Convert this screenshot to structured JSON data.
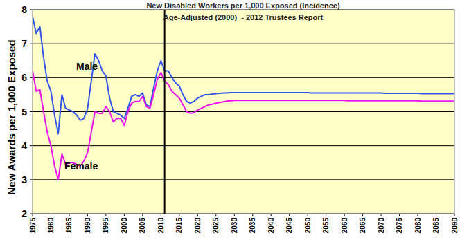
{
  "chart_data": {
    "type": "line",
    "title": "New Disabled Workers per 1,000 Exposed (Incidence)",
    "subtitle": "Age-Adjusted (2000)  - 2012 Trustees Report",
    "y_label": "New Awards per 1,000 Exposed",
    "x": [
      1975,
      1976,
      1977,
      1978,
      1979,
      1980,
      1981,
      1982,
      1983,
      1984,
      1985,
      1986,
      1987,
      1988,
      1989,
      1990,
      1991,
      1992,
      1993,
      1994,
      1995,
      1996,
      1997,
      1998,
      1999,
      2000,
      2001,
      2002,
      2003,
      2004,
      2005,
      2006,
      2007,
      2008,
      2009,
      2010,
      2011,
      2012,
      2013,
      2014,
      2015,
      2016,
      2017,
      2018,
      2019,
      2020,
      2021,
      2022,
      2023,
      2024,
      2025,
      2026,
      2027,
      2028,
      2029,
      2030,
      2031,
      2032,
      2033,
      2034,
      2035,
      2036,
      2037,
      2038,
      2039,
      2040,
      2041,
      2042,
      2043,
      2044,
      2045,
      2046,
      2047,
      2048,
      2049,
      2050,
      2051,
      2052,
      2053,
      2054,
      2055,
      2056,
      2057,
      2058,
      2059,
      2060,
      2061,
      2062,
      2063,
      2064,
      2065,
      2066,
      2067,
      2068,
      2069,
      2070,
      2071,
      2072,
      2073,
      2074,
      2075,
      2076,
      2077,
      2078,
      2079,
      2080,
      2081,
      2082,
      2083,
      2084,
      2085,
      2086,
      2087,
      2088,
      2089,
      2090
    ],
    "series": [
      {
        "name": "Male",
        "color": "#3355ee",
        "values": [
          7.8,
          7.3,
          7.5,
          6.6,
          5.9,
          5.6,
          4.9,
          4.35,
          5.5,
          5.1,
          5.05,
          5.0,
          4.9,
          4.75,
          4.8,
          5.1,
          5.9,
          6.7,
          6.5,
          6.2,
          6.05,
          5.4,
          5.0,
          4.95,
          4.9,
          4.8,
          5.1,
          5.45,
          5.5,
          5.45,
          5.55,
          5.2,
          5.15,
          5.7,
          6.2,
          6.5,
          6.2,
          6.2,
          6.0,
          5.85,
          5.75,
          5.5,
          5.3,
          5.25,
          5.3,
          5.4,
          5.45,
          5.5,
          5.5,
          5.52,
          5.53,
          5.54,
          5.55,
          5.55,
          5.56,
          5.56,
          5.56,
          5.56,
          5.56,
          5.56,
          5.56,
          5.56,
          5.56,
          5.56,
          5.56,
          5.56,
          5.56,
          5.56,
          5.56,
          5.56,
          5.56,
          5.56,
          5.56,
          5.56,
          5.56,
          5.56,
          5.55,
          5.55,
          5.55,
          5.55,
          5.55,
          5.55,
          5.55,
          5.55,
          5.55,
          5.55,
          5.55,
          5.55,
          5.55,
          5.55,
          5.55,
          5.55,
          5.55,
          5.55,
          5.55,
          5.55,
          5.54,
          5.54,
          5.54,
          5.54,
          5.54,
          5.54,
          5.54,
          5.54,
          5.54,
          5.54,
          5.53,
          5.53,
          5.53,
          5.53,
          5.53,
          5.53,
          5.53,
          5.53,
          5.53,
          5.53
        ]
      },
      {
        "name": "Female",
        "color": "#ee11ee",
        "values": [
          6.2,
          5.6,
          5.65,
          5.0,
          4.4,
          4.0,
          3.4,
          3.0,
          3.75,
          3.45,
          3.5,
          3.5,
          3.45,
          3.4,
          3.55,
          3.8,
          4.4,
          5.0,
          4.95,
          4.95,
          5.15,
          5.0,
          4.7,
          4.8,
          4.8,
          4.6,
          5.0,
          5.25,
          5.3,
          5.3,
          5.45,
          5.15,
          5.1,
          5.5,
          5.95,
          6.15,
          5.9,
          5.8,
          5.6,
          5.5,
          5.4,
          5.2,
          5.0,
          4.95,
          4.97,
          5.05,
          5.1,
          5.15,
          5.2,
          5.22,
          5.25,
          5.27,
          5.29,
          5.31,
          5.32,
          5.33,
          5.33,
          5.33,
          5.33,
          5.33,
          5.33,
          5.33,
          5.33,
          5.33,
          5.33,
          5.33,
          5.33,
          5.33,
          5.33,
          5.33,
          5.33,
          5.33,
          5.33,
          5.33,
          5.33,
          5.33,
          5.33,
          5.33,
          5.33,
          5.33,
          5.33,
          5.33,
          5.33,
          5.33,
          5.33,
          5.33,
          5.32,
          5.32,
          5.32,
          5.32,
          5.32,
          5.32,
          5.32,
          5.32,
          5.32,
          5.32,
          5.32,
          5.32,
          5.32,
          5.32,
          5.32,
          5.32,
          5.32,
          5.32,
          5.32,
          5.32,
          5.31,
          5.31,
          5.31,
          5.31,
          5.31,
          5.31,
          5.31,
          5.31,
          5.31,
          5.31
        ]
      }
    ],
    "divider_x": 2011,
    "xlim": [
      1975,
      2090
    ],
    "ylim": [
      2,
      8
    ],
    "xticks": [
      1975,
      1980,
      1985,
      1990,
      1995,
      2000,
      2005,
      2010,
      2015,
      2020,
      2025,
      2030,
      2035,
      2040,
      2045,
      2050,
      2055,
      2060,
      2065,
      2070,
      2075,
      2080,
      2085,
      2090
    ],
    "yticks": [
      2,
      3,
      4,
      5,
      6,
      7,
      8
    ],
    "grid": true
  }
}
